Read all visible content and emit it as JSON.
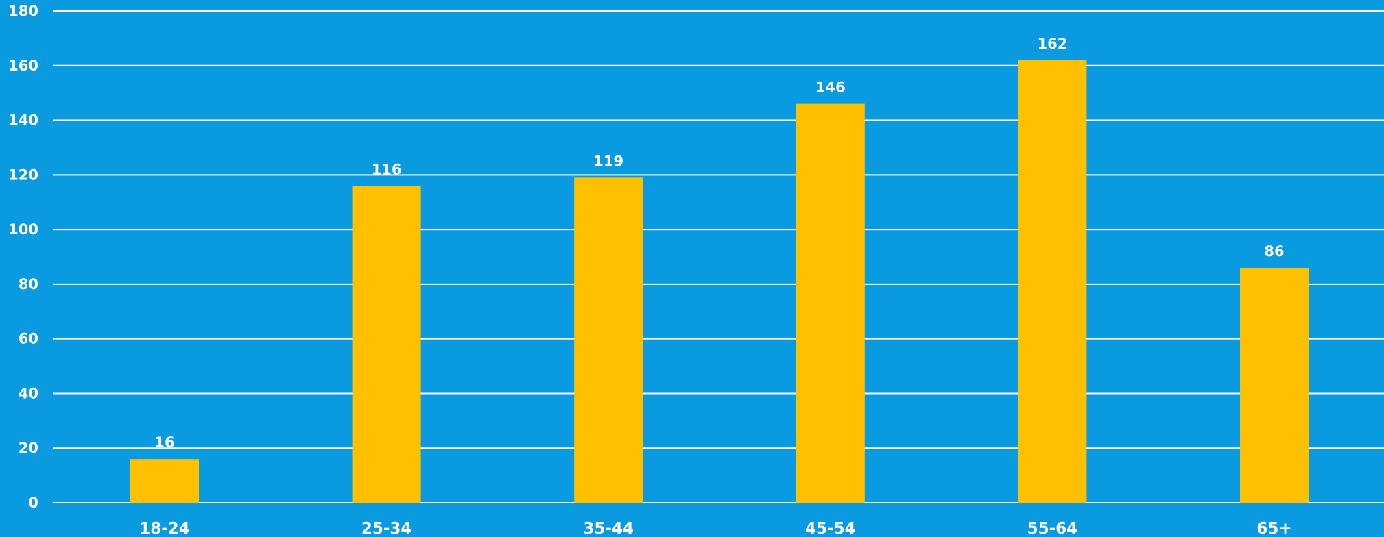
{
  "chart_data": {
    "type": "bar",
    "categories": [
      "18-24",
      "25-34",
      "35-44",
      "45-54",
      "55-64",
      "65+"
    ],
    "values": [
      16,
      116,
      119,
      146,
      162,
      86
    ],
    "yticks": [
      "0",
      "20",
      "40",
      "60",
      "80",
      "100",
      "120",
      "140",
      "160",
      "180"
    ],
    "ylim": [
      0,
      180
    ],
    "grid": true,
    "data_labels": true,
    "colors": {
      "background": "#0a9ae0",
      "bar": "#ffc000",
      "grid": "#ffffff",
      "text": "#ffffff"
    }
  }
}
